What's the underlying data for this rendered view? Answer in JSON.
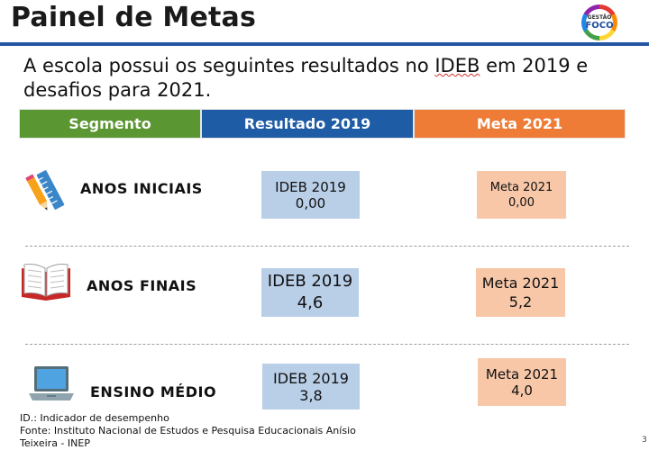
{
  "header": {
    "title": "Painel de Metas",
    "logo_top": "GESTÃO",
    "logo_bottom": "FOCO"
  },
  "intro": {
    "before": "A escola possui os seguintes resultados no ",
    "ideb": "IDEB",
    "after": " em 2019 e desafios para 2021."
  },
  "table": {
    "headers": {
      "segment": "Segmento",
      "result": "Resultado 2019",
      "target": "Meta 2021"
    },
    "rows": [
      {
        "segment": "ANOS INICIAIS",
        "icon": "school-supplies-icon",
        "result_label": "IDEB 2019",
        "result_value": "0,00",
        "target_label": "Meta 2021",
        "target_value": "0,00"
      },
      {
        "segment": "ANOS FINAIS",
        "icon": "open-book-icon",
        "result_label": "IDEB 2019",
        "result_value": "4,6",
        "target_label": "Meta 2021",
        "target_value": "5,2"
      },
      {
        "segment": "ENSINO MÉDIO",
        "icon": "laptop-icon",
        "result_label": "IDEB 2019",
        "result_value": "3,8",
        "target_label": "Meta 2021",
        "target_value": "4,0"
      }
    ]
  },
  "footer": {
    "line1": "ID.: Indicador de desempenho",
    "line2": "Fonte: Instituto Nacional de Estudos e Pesquisa Educacionais Anísio",
    "line3": "Teixeira - INEP"
  },
  "page_number": "3",
  "colors": {
    "segment": "#5a9631",
    "result": "#1f5ca6",
    "target": "#ef7c36",
    "result_box": "#b9cfe8",
    "target_box": "#f8c7a8",
    "title_rule": "#2456a4"
  }
}
